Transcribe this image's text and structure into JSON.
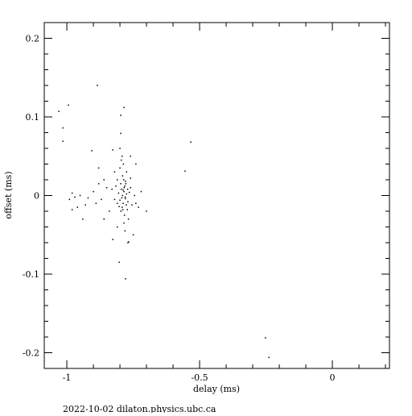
{
  "chart_data": {
    "type": "scatter",
    "xlabel": "delay (ms)",
    "ylabel": "offset (ms)",
    "footer": "2022-10-02  dilaton.physics.ubc.ca",
    "xlim": [
      -1.085,
      0.215
    ],
    "ylim": [
      -0.22,
      0.22
    ],
    "xticks": [
      -1,
      -0.5,
      0
    ],
    "yticks": [
      -0.2,
      -0.1,
      0,
      0.1,
      0.2
    ],
    "xminorticks": [
      -1.1,
      -0.9,
      -0.8,
      -0.7,
      -0.6,
      -0.4,
      -0.3,
      -0.2,
      -0.1,
      0.1,
      0.2
    ],
    "yminorticks": [
      -0.18,
      -0.16,
      -0.14,
      -0.12,
      -0.08,
      -0.06,
      -0.04,
      -0.02,
      0.02,
      0.04,
      0.06,
      0.08,
      0.12,
      0.14,
      0.16,
      0.18
    ],
    "color": "#000000",
    "x": [
      -0.79,
      -0.785,
      -0.78,
      -0.795,
      -0.775,
      -0.8,
      -0.788,
      -0.782,
      -0.77,
      -0.805,
      -0.792,
      -0.778,
      -0.765,
      -0.81,
      -0.786,
      -0.796,
      -0.772,
      -0.76,
      -0.815,
      -0.783,
      -0.79,
      -0.775,
      -0.8,
      -0.785,
      -0.768,
      -0.81,
      -0.755,
      -0.82,
      -0.745,
      -0.74,
      -0.83,
      -0.76,
      -0.787,
      -0.792,
      -0.781,
      -0.795,
      -0.78,
      -0.788,
      -0.793,
      -0.776,
      -0.784,
      -0.797,
      -0.771,
      -0.803,
      -0.779,
      -0.789,
      -0.85,
      -0.87,
      -0.86,
      -0.88,
      -0.84,
      -0.89,
      -0.73,
      -0.72,
      -0.7,
      -0.9,
      -0.92,
      -0.95,
      -0.97,
      -0.98,
      -0.99,
      -0.96,
      -0.98,
      -0.94,
      -0.93,
      -0.86,
      -0.88,
      -0.82,
      -0.81,
      -0.74,
      -0.76,
      -0.8,
      -0.77,
      -0.75,
      -1.03,
      -0.994,
      -0.885,
      -1.015,
      -1.015,
      -0.797,
      -0.785,
      -0.797,
      -0.533,
      -0.555,
      -0.252,
      -0.239,
      -0.779,
      -0.803,
      -0.767,
      -0.827,
      -0.906,
      -0.827
    ],
    "values": [
      0.0,
      0.005,
      -0.004,
      0.008,
      0.002,
      -0.006,
      -0.01,
      0.012,
      -0.008,
      0.003,
      -0.015,
      0.015,
      0.004,
      -0.01,
      0.02,
      -0.02,
      -0.018,
      0.01,
      0.012,
      -0.025,
      0.025,
      0.03,
      0.035,
      -0.035,
      -0.03,
      0.02,
      -0.012,
      -0.005,
      0.0,
      -0.01,
      0.008,
      0.022,
      0.04,
      0.05,
      -0.045,
      0.045,
      -0.002,
      0.007,
      -0.003,
      -0.012,
      0.01,
      0.015,
      0.008,
      -0.014,
      0.018,
      -0.018,
      0.01,
      -0.005,
      0.02,
      0.015,
      -0.02,
      -0.01,
      -0.015,
      0.005,
      -0.02,
      0.005,
      -0.003,
      0.0,
      -0.002,
      0.003,
      -0.005,
      -0.015,
      -0.018,
      -0.03,
      -0.012,
      -0.03,
      0.035,
      0.03,
      -0.04,
      0.04,
      0.05,
      0.06,
      -0.06,
      -0.05,
      0.107,
      0.115,
      0.14,
      0.086,
      0.069,
      0.102,
      0.112,
      0.079,
      0.068,
      0.031,
      -0.181,
      -0.206,
      -0.106,
      -0.085,
      -0.059,
      -0.056,
      0.057,
      0.058
    ]
  }
}
